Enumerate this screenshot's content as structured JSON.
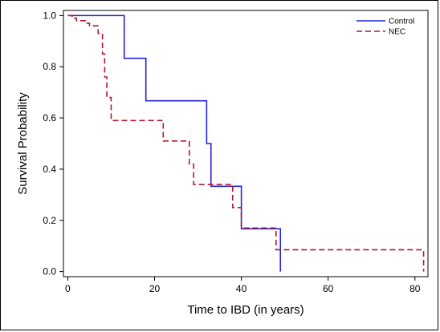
{
  "chart_data": {
    "type": "line",
    "title": "",
    "xlabel": "Time to IBD (in years)",
    "ylabel": "Survival Probability",
    "xlim": [
      -1,
      83
    ],
    "ylim": [
      -0.02,
      1.02
    ],
    "x_ticks": [
      0,
      20,
      40,
      60,
      80
    ],
    "y_ticks": [
      0.0,
      0.2,
      0.4,
      0.6,
      0.8,
      1.0
    ],
    "x_tick_labels": [
      "0",
      "20",
      "40",
      "60",
      "80"
    ],
    "y_tick_labels": [
      "0.0",
      "0.2",
      "0.4",
      "0.6",
      "0.8",
      "1.0"
    ],
    "grid": false,
    "legend_position": "top-right",
    "series": [
      {
        "name": "Control",
        "color": "#2323d6",
        "style": "solid",
        "step": true,
        "points": [
          [
            0,
            1.0
          ],
          [
            13,
            1.0
          ],
          [
            13,
            0.833
          ],
          [
            18,
            0.833
          ],
          [
            18,
            0.667
          ],
          [
            32,
            0.667
          ],
          [
            32,
            0.5
          ],
          [
            33,
            0.5
          ],
          [
            33,
            0.333
          ],
          [
            40,
            0.333
          ],
          [
            40,
            0.167
          ],
          [
            49,
            0.167
          ],
          [
            49,
            0.0
          ]
        ]
      },
      {
        "name": "NEC",
        "color": "#b5162f",
        "style": "dashed",
        "step": true,
        "points": [
          [
            0,
            1.0
          ],
          [
            1,
            1.0
          ],
          [
            1,
            0.99
          ],
          [
            2,
            0.99
          ],
          [
            2,
            0.98
          ],
          [
            4,
            0.98
          ],
          [
            4,
            0.97
          ],
          [
            5,
            0.97
          ],
          [
            5,
            0.96
          ],
          [
            7,
            0.96
          ],
          [
            7,
            0.93
          ],
          [
            8,
            0.93
          ],
          [
            8,
            0.85
          ],
          [
            8.5,
            0.85
          ],
          [
            8.5,
            0.76
          ],
          [
            9,
            0.76
          ],
          [
            9,
            0.68
          ],
          [
            10,
            0.68
          ],
          [
            10,
            0.59
          ],
          [
            22,
            0.59
          ],
          [
            22,
            0.51
          ],
          [
            28,
            0.51
          ],
          [
            28,
            0.42
          ],
          [
            29,
            0.42
          ],
          [
            29,
            0.34
          ],
          [
            38,
            0.34
          ],
          [
            38,
            0.25
          ],
          [
            40,
            0.25
          ],
          [
            40,
            0.17
          ],
          [
            48,
            0.17
          ],
          [
            48,
            0.085
          ],
          [
            82,
            0.085
          ],
          [
            82,
            0.0
          ]
        ]
      }
    ]
  }
}
